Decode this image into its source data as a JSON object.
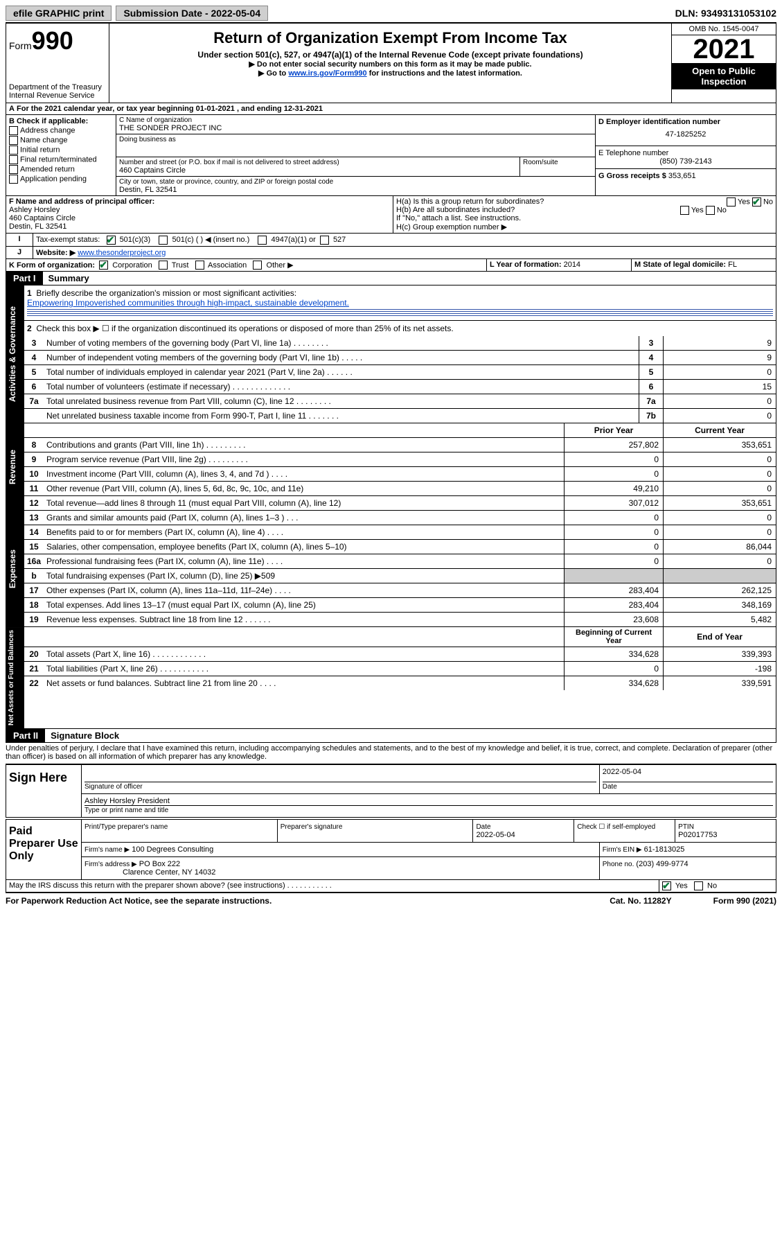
{
  "topbar": {
    "efile": "efile GRAPHIC print",
    "submission_label": "Submission Date - 2022-05-04",
    "dln_label": "DLN: 93493131053102"
  },
  "header": {
    "form_word": "Form",
    "form_num": "990",
    "dept": "Department of the Treasury",
    "irs": "Internal Revenue Service",
    "title": "Return of Organization Exempt From Income Tax",
    "subtitle": "Under section 501(c), 527, or 4947(a)(1) of the Internal Revenue Code (except private foundations)",
    "note1": "▶ Do not enter social security numbers on this form as it may be made public.",
    "note2_pre": "▶ Go to ",
    "note2_link": "www.irs.gov/Form990",
    "note2_post": " for instructions and the latest information.",
    "omb": "OMB No. 1545-0047",
    "year": "2021",
    "open": "Open to Public Inspection"
  },
  "line_a": "For the 2021 calendar year, or tax year beginning 01-01-2021   , and ending 12-31-2021",
  "b": {
    "label": "B Check if applicable:",
    "items": [
      "Address change",
      "Name change",
      "Initial return",
      "Final return/terminated",
      "Amended return",
      "Application pending"
    ]
  },
  "c": {
    "name_label": "C Name of organization",
    "name": "THE SONDER PROJECT INC",
    "dba_label": "Doing business as",
    "street_label": "Number and street (or P.O. box if mail is not delivered to street address)",
    "room_label": "Room/suite",
    "street": "460 Captains Circle",
    "city_label": "City or town, state or province, country, and ZIP or foreign postal code",
    "city": "Destin, FL  32541"
  },
  "d": {
    "label": "D Employer identification number",
    "value": "47-1825252"
  },
  "e": {
    "label": "E Telephone number",
    "value": "(850) 739-2143"
  },
  "g": {
    "label": "G Gross receipts $",
    "value": "353,651"
  },
  "f": {
    "label": "F Name and address of principal officer:",
    "name": "Ashley Horsley",
    "addr1": "460 Captains Circle",
    "addr2": "Destin, FL  32541"
  },
  "h": {
    "a": "H(a)  Is this a group return for subordinates?",
    "b": "H(b)  Are all subordinates included?",
    "b_note": "If \"No,\" attach a list. See instructions.",
    "c": "H(c)  Group exemption number ▶",
    "yes": "Yes",
    "no": "No"
  },
  "i": {
    "label": "Tax-exempt status:",
    "opt1": "501(c)(3)",
    "opt2": "501(c) (  ) ◀ (insert no.)",
    "opt3": "4947(a)(1) or",
    "opt4": "527"
  },
  "j": {
    "label": "Website: ▶",
    "value": "www.thesonderproject.org"
  },
  "k": {
    "label": "K Form of organization:",
    "opts": [
      "Corporation",
      "Trust",
      "Association",
      "Other ▶"
    ]
  },
  "l": {
    "label": "L Year of formation:",
    "value": "2014"
  },
  "m": {
    "label": "M State of legal domicile:",
    "value": "FL"
  },
  "part1": {
    "label": "Part I",
    "title": "Summary",
    "q1": "Briefly describe the organization's mission or most significant activities:",
    "q1_ans": "Empowering Impoverished communities through high-impact, sustainable development.",
    "q2": "Check this box ▶ ☐  if the organization discontinued its operations or disposed of more than 25% of its net assets.",
    "lines_gov": [
      {
        "n": "3",
        "d": "Number of voting members of the governing body (Part VI, line 1a)  .   .   .   .   .   .   .   .",
        "b": "3",
        "v": "9"
      },
      {
        "n": "4",
        "d": "Number of independent voting members of the governing body (Part VI, line 1b)  .   .   .   .   .",
        "b": "4",
        "v": "9"
      },
      {
        "n": "5",
        "d": "Total number of individuals employed in calendar year 2021 (Part V, line 2a)  .   .   .   .   .   .",
        "b": "5",
        "v": "0"
      },
      {
        "n": "6",
        "d": "Total number of volunteers (estimate if necessary)  .   .   .   .   .   .   .   .   .   .   .   .   .",
        "b": "6",
        "v": "15"
      },
      {
        "n": "7a",
        "d": "Total unrelated business revenue from Part VIII, column (C), line 12  .   .   .   .   .   .   .   .",
        "b": "7a",
        "v": "0"
      },
      {
        "n": "",
        "d": "Net unrelated business taxable income from Form 990-T, Part I, line 11  .   .   .   .   .   .   .",
        "b": "7b",
        "v": "0"
      }
    ],
    "col_prior": "Prior Year",
    "col_current": "Current Year",
    "lines_rev": [
      {
        "n": "8",
        "d": "Contributions and grants (Part VIII, line 1h)  .   .   .   .   .   .   .   .   .",
        "p": "257,802",
        "c": "353,651"
      },
      {
        "n": "9",
        "d": "Program service revenue (Part VIII, line 2g)  .   .   .   .   .   .   .   .   .",
        "p": "0",
        "c": "0"
      },
      {
        "n": "10",
        "d": "Investment income (Part VIII, column (A), lines 3, 4, and 7d )  .   .   .   .",
        "p": "0",
        "c": "0"
      },
      {
        "n": "11",
        "d": "Other revenue (Part VIII, column (A), lines 5, 6d, 8c, 9c, 10c, and 11e)",
        "p": "49,210",
        "c": "0"
      },
      {
        "n": "12",
        "d": "Total revenue—add lines 8 through 11 (must equal Part VIII, column (A), line 12)",
        "p": "307,012",
        "c": "353,651"
      }
    ],
    "lines_exp": [
      {
        "n": "13",
        "d": "Grants and similar amounts paid (Part IX, column (A), lines 1–3 )  .   .   .",
        "p": "0",
        "c": "0"
      },
      {
        "n": "14",
        "d": "Benefits paid to or for members (Part IX, column (A), line 4)  .   .   .   .",
        "p": "0",
        "c": "0"
      },
      {
        "n": "15",
        "d": "Salaries, other compensation, employee benefits (Part IX, column (A), lines 5–10)",
        "p": "0",
        "c": "86,044"
      },
      {
        "n": "16a",
        "d": "Professional fundraising fees (Part IX, column (A), line 11e)  .   .   .   .",
        "p": "0",
        "c": "0"
      },
      {
        "n": "b",
        "d": "Total fundraising expenses (Part IX, column (D), line 25) ▶509",
        "p": "",
        "c": "",
        "shaded": true
      },
      {
        "n": "17",
        "d": "Other expenses (Part IX, column (A), lines 11a–11d, 11f–24e)  .   .   .   .",
        "p": "283,404",
        "c": "262,125"
      },
      {
        "n": "18",
        "d": "Total expenses. Add lines 13–17 (must equal Part IX, column (A), line 25)",
        "p": "283,404",
        "c": "348,169"
      },
      {
        "n": "19",
        "d": "Revenue less expenses. Subtract line 18 from line 12  .   .   .   .   .   .",
        "p": "23,608",
        "c": "5,482"
      }
    ],
    "col_begin": "Beginning of Current Year",
    "col_end": "End of Year",
    "lines_net": [
      {
        "n": "20",
        "d": "Total assets (Part X, line 16)  .   .   .   .   .   .   .   .   .   .   .   .",
        "p": "334,628",
        "c": "339,393"
      },
      {
        "n": "21",
        "d": "Total liabilities (Part X, line 26)  .   .   .   .   .   .   .   .   .   .   .",
        "p": "0",
        "c": "-198"
      },
      {
        "n": "22",
        "d": "Net assets or fund balances. Subtract line 21 from line 20  .   .   .   .",
        "p": "334,628",
        "c": "339,591"
      }
    ]
  },
  "tabs": {
    "gov": "Activities & Governance",
    "rev": "Revenue",
    "exp": "Expenses",
    "net": "Net Assets or Fund Balances"
  },
  "part2": {
    "label": "Part II",
    "title": "Signature Block",
    "decl": "Under penalties of perjury, I declare that I have examined this return, including accompanying schedules and statements, and to the best of my knowledge and belief, it is true, correct, and complete. Declaration of preparer (other than officer) is based on all information of which preparer has any knowledge."
  },
  "sign": {
    "here": "Sign Here",
    "sig_label": "Signature of officer",
    "date_label": "Date",
    "date": "2022-05-04",
    "name": "Ashley Horsley  President",
    "name_label": "Type or print name and title"
  },
  "paid": {
    "label": "Paid Preparer Use Only",
    "col1": "Print/Type preparer's name",
    "col2": "Preparer's signature",
    "col3_label": "Date",
    "col3": "2022-05-04",
    "col4_label": "Check ☐ if self-employed",
    "col5_label": "PTIN",
    "col5": "P02017753",
    "firm_name_label": "Firm's name      ▶",
    "firm_name": "100 Degrees Consulting",
    "firm_ein_label": "Firm's EIN ▶",
    "firm_ein": "61-1813025",
    "firm_addr_label": "Firm's address ▶",
    "firm_addr1": "PO Box 222",
    "firm_addr2": "Clarence Center, NY  14032",
    "phone_label": "Phone no.",
    "phone": "(203) 499-9774"
  },
  "discuss": {
    "q": "May the IRS discuss this return with the preparer shown above? (see instructions)  .   .   .   .   .   .   .   .   .   .   .",
    "yes": "Yes",
    "no": "No"
  },
  "footer": {
    "left": "For Paperwork Reduction Act Notice, see the separate instructions.",
    "mid": "Cat. No. 11282Y",
    "right": "Form 990 (2021)"
  }
}
